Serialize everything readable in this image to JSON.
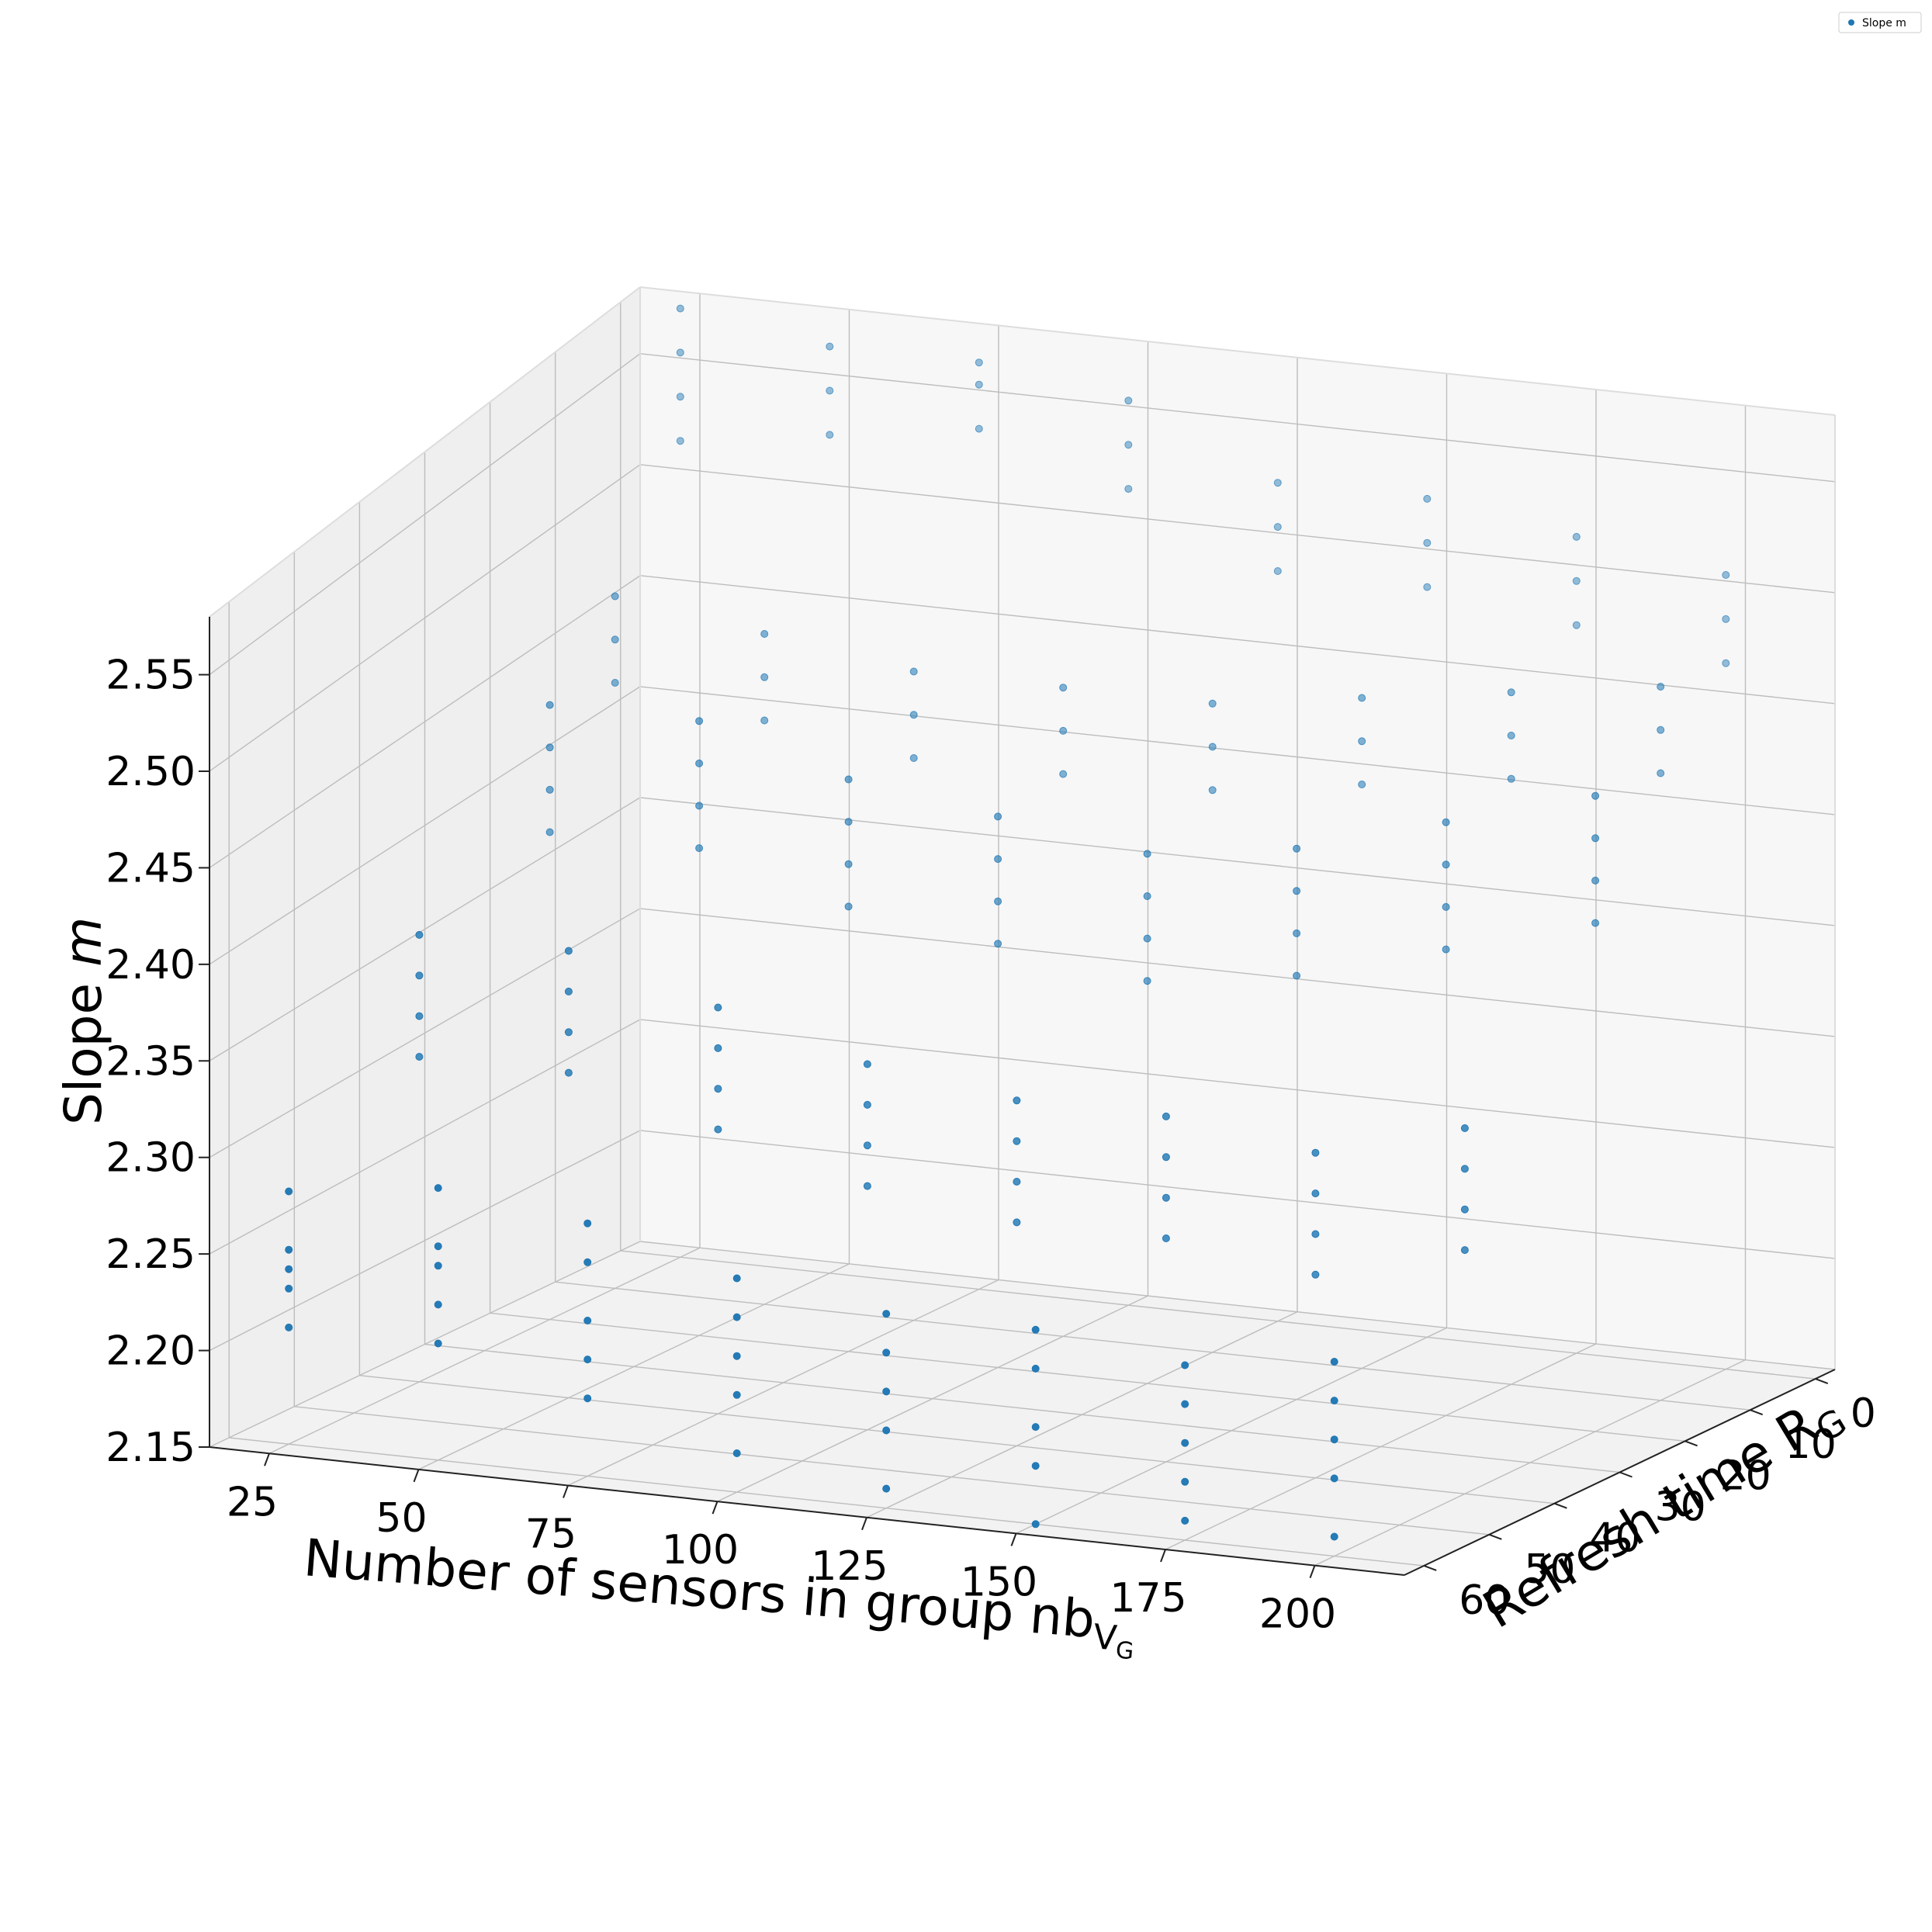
{
  "chart_data": {
    "type": "scatter",
    "projection": "3d",
    "xlabel": "Number of sensors in group nb",
    "xlabel_sub": "V",
    "xlabel_subsub": "G",
    "ylabel": "Refresh time R",
    "ylabel_sub": "G",
    "zlabel_main": "Slope ",
    "zlabel_var": "m",
    "xlim": [
      15,
      215
    ],
    "ylim": [
      -3,
      63
    ],
    "zlim": [
      2.15,
      2.58
    ],
    "x_ticks": [
      "25",
      "50",
      "75",
      "100",
      "125",
      "150",
      "175",
      "200"
    ],
    "y_ticks": [
      "0",
      "10",
      "20",
      "30",
      "40",
      "50",
      "60"
    ],
    "z_ticks": [
      "2.15",
      "2.20",
      "2.25",
      "2.30",
      "2.35",
      "2.40",
      "2.45",
      "2.50",
      "2.55"
    ],
    "grid": true,
    "legend": {
      "placement": "top-right",
      "entries": [
        "Slope m"
      ]
    },
    "colors": {
      "series": "#1f77b4",
      "pane": "#f2f2f2",
      "grid": "#bdbdbd"
    },
    "series": [
      {
        "name": "Slope m",
        "sensors_values": [
          25,
          50,
          75,
          100,
          125,
          150,
          175,
          200
        ],
        "refresh_values": [
          0,
          10,
          20,
          30,
          40,
          50,
          60
        ],
        "points": [
          [
            25,
            60,
            2.21
          ],
          [
            25,
            60,
            2.23
          ],
          [
            25,
            60,
            2.24
          ],
          [
            25,
            60,
            2.25
          ],
          [
            25,
            60,
            2.28
          ],
          [
            50,
            60,
            2.21
          ],
          [
            50,
            60,
            2.23
          ],
          [
            50,
            60,
            2.25
          ],
          [
            50,
            60,
            2.26
          ],
          [
            50,
            60,
            2.29
          ],
          [
            75,
            60,
            2.19
          ],
          [
            75,
            60,
            2.21
          ],
          [
            75,
            60,
            2.23
          ],
          [
            75,
            60,
            2.26
          ],
          [
            75,
            60,
            2.28
          ],
          [
            100,
            60,
            2.17
          ],
          [
            100,
            60,
            2.2
          ],
          [
            100,
            60,
            2.22
          ],
          [
            100,
            60,
            2.24
          ],
          [
            100,
            60,
            2.26
          ],
          [
            125,
            60,
            2.16
          ],
          [
            125,
            60,
            2.19
          ],
          [
            125,
            60,
            2.21
          ],
          [
            125,
            60,
            2.23
          ],
          [
            125,
            60,
            2.25
          ],
          [
            150,
            60,
            2.15
          ],
          [
            150,
            60,
            2.18
          ],
          [
            150,
            60,
            2.2
          ],
          [
            150,
            60,
            2.23
          ],
          [
            150,
            60,
            2.25
          ],
          [
            175,
            60,
            2.16
          ],
          [
            175,
            60,
            2.18
          ],
          [
            175,
            60,
            2.2
          ],
          [
            175,
            60,
            2.22
          ],
          [
            175,
            60,
            2.24
          ],
          [
            200,
            60,
            2.16
          ],
          [
            200,
            60,
            2.19
          ],
          [
            200,
            60,
            2.21
          ],
          [
            200,
            60,
            2.23
          ],
          [
            200,
            60,
            2.25
          ],
          [
            25,
            40,
            2.31
          ],
          [
            25,
            40,
            2.33
          ],
          [
            25,
            40,
            2.35
          ],
          [
            25,
            40,
            2.37
          ],
          [
            50,
            40,
            2.31
          ],
          [
            50,
            40,
            2.33
          ],
          [
            50,
            40,
            2.35
          ],
          [
            50,
            40,
            2.37
          ],
          [
            75,
            40,
            2.29
          ],
          [
            75,
            40,
            2.31
          ],
          [
            75,
            40,
            2.33
          ],
          [
            75,
            40,
            2.35
          ],
          [
            100,
            40,
            2.27
          ],
          [
            100,
            40,
            2.29
          ],
          [
            100,
            40,
            2.31
          ],
          [
            100,
            40,
            2.33
          ],
          [
            125,
            40,
            2.26
          ],
          [
            125,
            40,
            2.28
          ],
          [
            125,
            40,
            2.3
          ],
          [
            125,
            40,
            2.32
          ],
          [
            150,
            40,
            2.26
          ],
          [
            150,
            40,
            2.28
          ],
          [
            150,
            40,
            2.3
          ],
          [
            150,
            40,
            2.32
          ],
          [
            175,
            40,
            2.25
          ],
          [
            175,
            40,
            2.27
          ],
          [
            175,
            40,
            2.29
          ],
          [
            175,
            40,
            2.31
          ],
          [
            200,
            40,
            2.27
          ],
          [
            200,
            40,
            2.29
          ],
          [
            200,
            40,
            2.31
          ],
          [
            200,
            40,
            2.33
          ],
          [
            25,
            20,
            2.38
          ],
          [
            25,
            20,
            2.4
          ],
          [
            25,
            20,
            2.42
          ],
          [
            25,
            20,
            2.44
          ],
          [
            50,
            20,
            2.38
          ],
          [
            50,
            20,
            2.4
          ],
          [
            50,
            20,
            2.42
          ],
          [
            50,
            20,
            2.44
          ],
          [
            75,
            20,
            2.36
          ],
          [
            75,
            20,
            2.38
          ],
          [
            75,
            20,
            2.4
          ],
          [
            75,
            20,
            2.42
          ],
          [
            100,
            20,
            2.35
          ],
          [
            100,
            20,
            2.37
          ],
          [
            100,
            20,
            2.39
          ],
          [
            100,
            20,
            2.41
          ],
          [
            125,
            20,
            2.34
          ],
          [
            125,
            20,
            2.36
          ],
          [
            125,
            20,
            2.38
          ],
          [
            125,
            20,
            2.4
          ],
          [
            150,
            20,
            2.35
          ],
          [
            150,
            20,
            2.37
          ],
          [
            150,
            20,
            2.39
          ],
          [
            150,
            20,
            2.41
          ],
          [
            175,
            20,
            2.37
          ],
          [
            175,
            20,
            2.39
          ],
          [
            175,
            20,
            2.41
          ],
          [
            175,
            20,
            2.43
          ],
          [
            200,
            20,
            2.39
          ],
          [
            200,
            20,
            2.41
          ],
          [
            200,
            20,
            2.43
          ],
          [
            200,
            20,
            2.45
          ],
          [
            25,
            10,
            2.43
          ],
          [
            25,
            10,
            2.45
          ],
          [
            25,
            10,
            2.47
          ],
          [
            50,
            10,
            2.42
          ],
          [
            50,
            10,
            2.44
          ],
          [
            50,
            10,
            2.46
          ],
          [
            75,
            10,
            2.41
          ],
          [
            75,
            10,
            2.43
          ],
          [
            75,
            10,
            2.45
          ],
          [
            100,
            10,
            2.41
          ],
          [
            100,
            10,
            2.43
          ],
          [
            100,
            10,
            2.45
          ],
          [
            125,
            10,
            2.41
          ],
          [
            125,
            10,
            2.43
          ],
          [
            125,
            10,
            2.45
          ],
          [
            150,
            10,
            2.42
          ],
          [
            150,
            10,
            2.44
          ],
          [
            150,
            10,
            2.46
          ],
          [
            175,
            10,
            2.43
          ],
          [
            175,
            10,
            2.45
          ],
          [
            175,
            10,
            2.47
          ],
          [
            200,
            10,
            2.44
          ],
          [
            200,
            10,
            2.46
          ],
          [
            200,
            10,
            2.48
          ],
          [
            25,
            0,
            2.52
          ],
          [
            25,
            0,
            2.54
          ],
          [
            25,
            0,
            2.56
          ],
          [
            25,
            0,
            2.58
          ],
          [
            50,
            0,
            2.53
          ],
          [
            50,
            0,
            2.55
          ],
          [
            50,
            0,
            2.57
          ],
          [
            75,
            0,
            2.54
          ],
          [
            75,
            0,
            2.56
          ],
          [
            75,
            0,
            2.57
          ],
          [
            100,
            0,
            2.52
          ],
          [
            100,
            0,
            2.54
          ],
          [
            100,
            0,
            2.56
          ],
          [
            125,
            0,
            2.49
          ],
          [
            125,
            0,
            2.51
          ],
          [
            125,
            0,
            2.53
          ],
          [
            150,
            0,
            2.49
          ],
          [
            150,
            0,
            2.51
          ],
          [
            150,
            0,
            2.53
          ],
          [
            175,
            0,
            2.48
          ],
          [
            175,
            0,
            2.5
          ],
          [
            175,
            0,
            2.52
          ],
          [
            200,
            0,
            2.47
          ],
          [
            200,
            0,
            2.49
          ],
          [
            200,
            0,
            2.51
          ]
        ]
      }
    ]
  }
}
